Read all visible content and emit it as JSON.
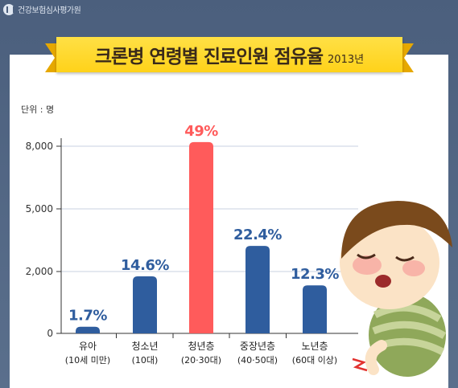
{
  "header": {
    "org": "건강보험심사평가원"
  },
  "title": {
    "main": "크론병 연령별 진료인원 점유율",
    "year": "2013년"
  },
  "unit_label": "단위 : 명",
  "colors": {
    "bar": "#2f5d9e",
    "highlight_bar": "#ff5b5b",
    "value_text": "#2f5d9e",
    "highlight_text": "#ff5b5b"
  },
  "chart_data": {
    "type": "bar",
    "categories": [
      "유아",
      "청소년",
      "청년층",
      "중장년층",
      "노년층"
    ],
    "category_sublabels": [
      "(10세 미만)",
      "(10대)",
      "(20·30대)",
      "(40·50대)",
      "(60대 이상)"
    ],
    "values": [
      1.7,
      14.6,
      49,
      22.4,
      12.3
    ],
    "value_labels": [
      "1.7%",
      "14.6%",
      "49%",
      "22.4%",
      "12.3%"
    ],
    "highlight_index": 2,
    "y_ticks": [
      "8,000",
      "5,000",
      "2,000",
      "0"
    ],
    "ylim": [
      0,
      50
    ],
    "grid": true,
    "legend": "none"
  }
}
